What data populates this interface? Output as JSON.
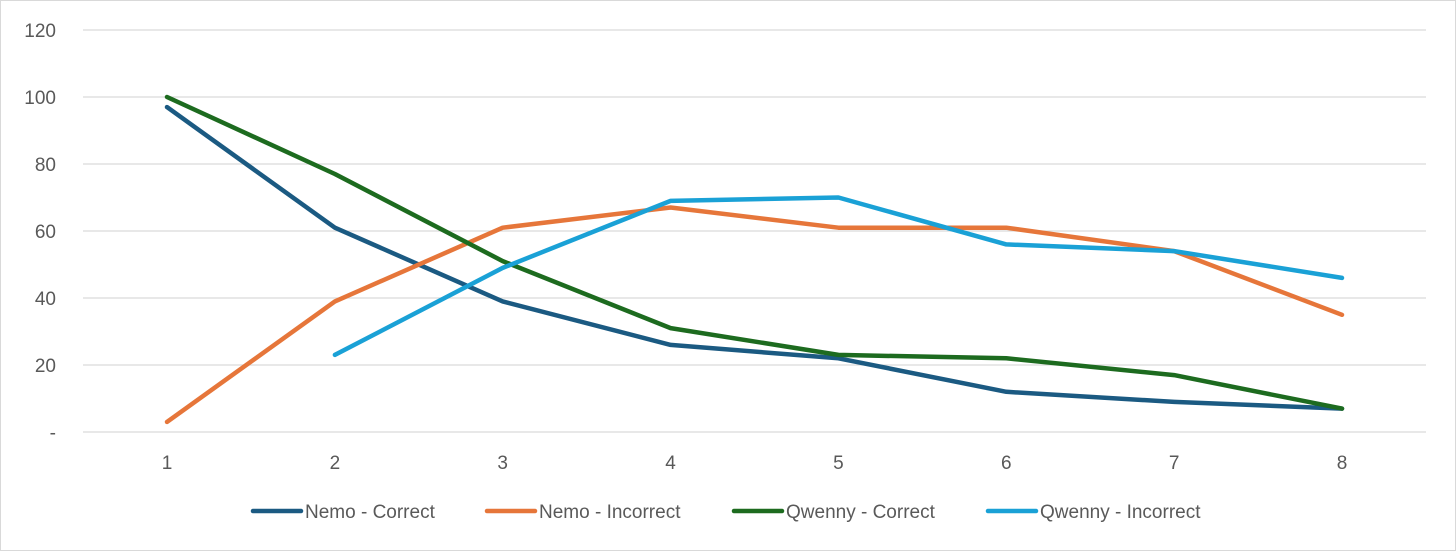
{
  "chart_data": {
    "type": "line",
    "title": "",
    "xlabel": "",
    "ylabel": "",
    "x": [
      1,
      2,
      3,
      4,
      5,
      6,
      7,
      8
    ],
    "x_tick_labels": [
      "1",
      "2",
      "3",
      "4",
      "5",
      "6",
      "7",
      "8"
    ],
    "ylim": [
      0,
      120
    ],
    "y_ticks": [
      0,
      20,
      40,
      60,
      80,
      100,
      120
    ],
    "y_tick_labels": [
      "-",
      "20",
      "40",
      "60",
      "80",
      "100",
      "120"
    ],
    "grid": "horizontal",
    "legend_position": "bottom",
    "series": [
      {
        "name": "Nemo - Correct",
        "color": "#1b5a82",
        "values": [
          97,
          61,
          39,
          26,
          22,
          12,
          9,
          7
        ]
      },
      {
        "name": "Nemo - Incorrect",
        "color": "#e6763a",
        "values": [
          3,
          39,
          61,
          67,
          61,
          61,
          54,
          35
        ]
      },
      {
        "name": "Qwenny - Correct",
        "color": "#1d6b1f",
        "values": [
          100,
          77,
          51,
          31,
          23,
          22,
          17,
          7
        ]
      },
      {
        "name": "Qwenny - Incorrect",
        "color": "#1aa1d6",
        "values": [
          null,
          23,
          49,
          69,
          70,
          56,
          54,
          46
        ]
      }
    ]
  }
}
